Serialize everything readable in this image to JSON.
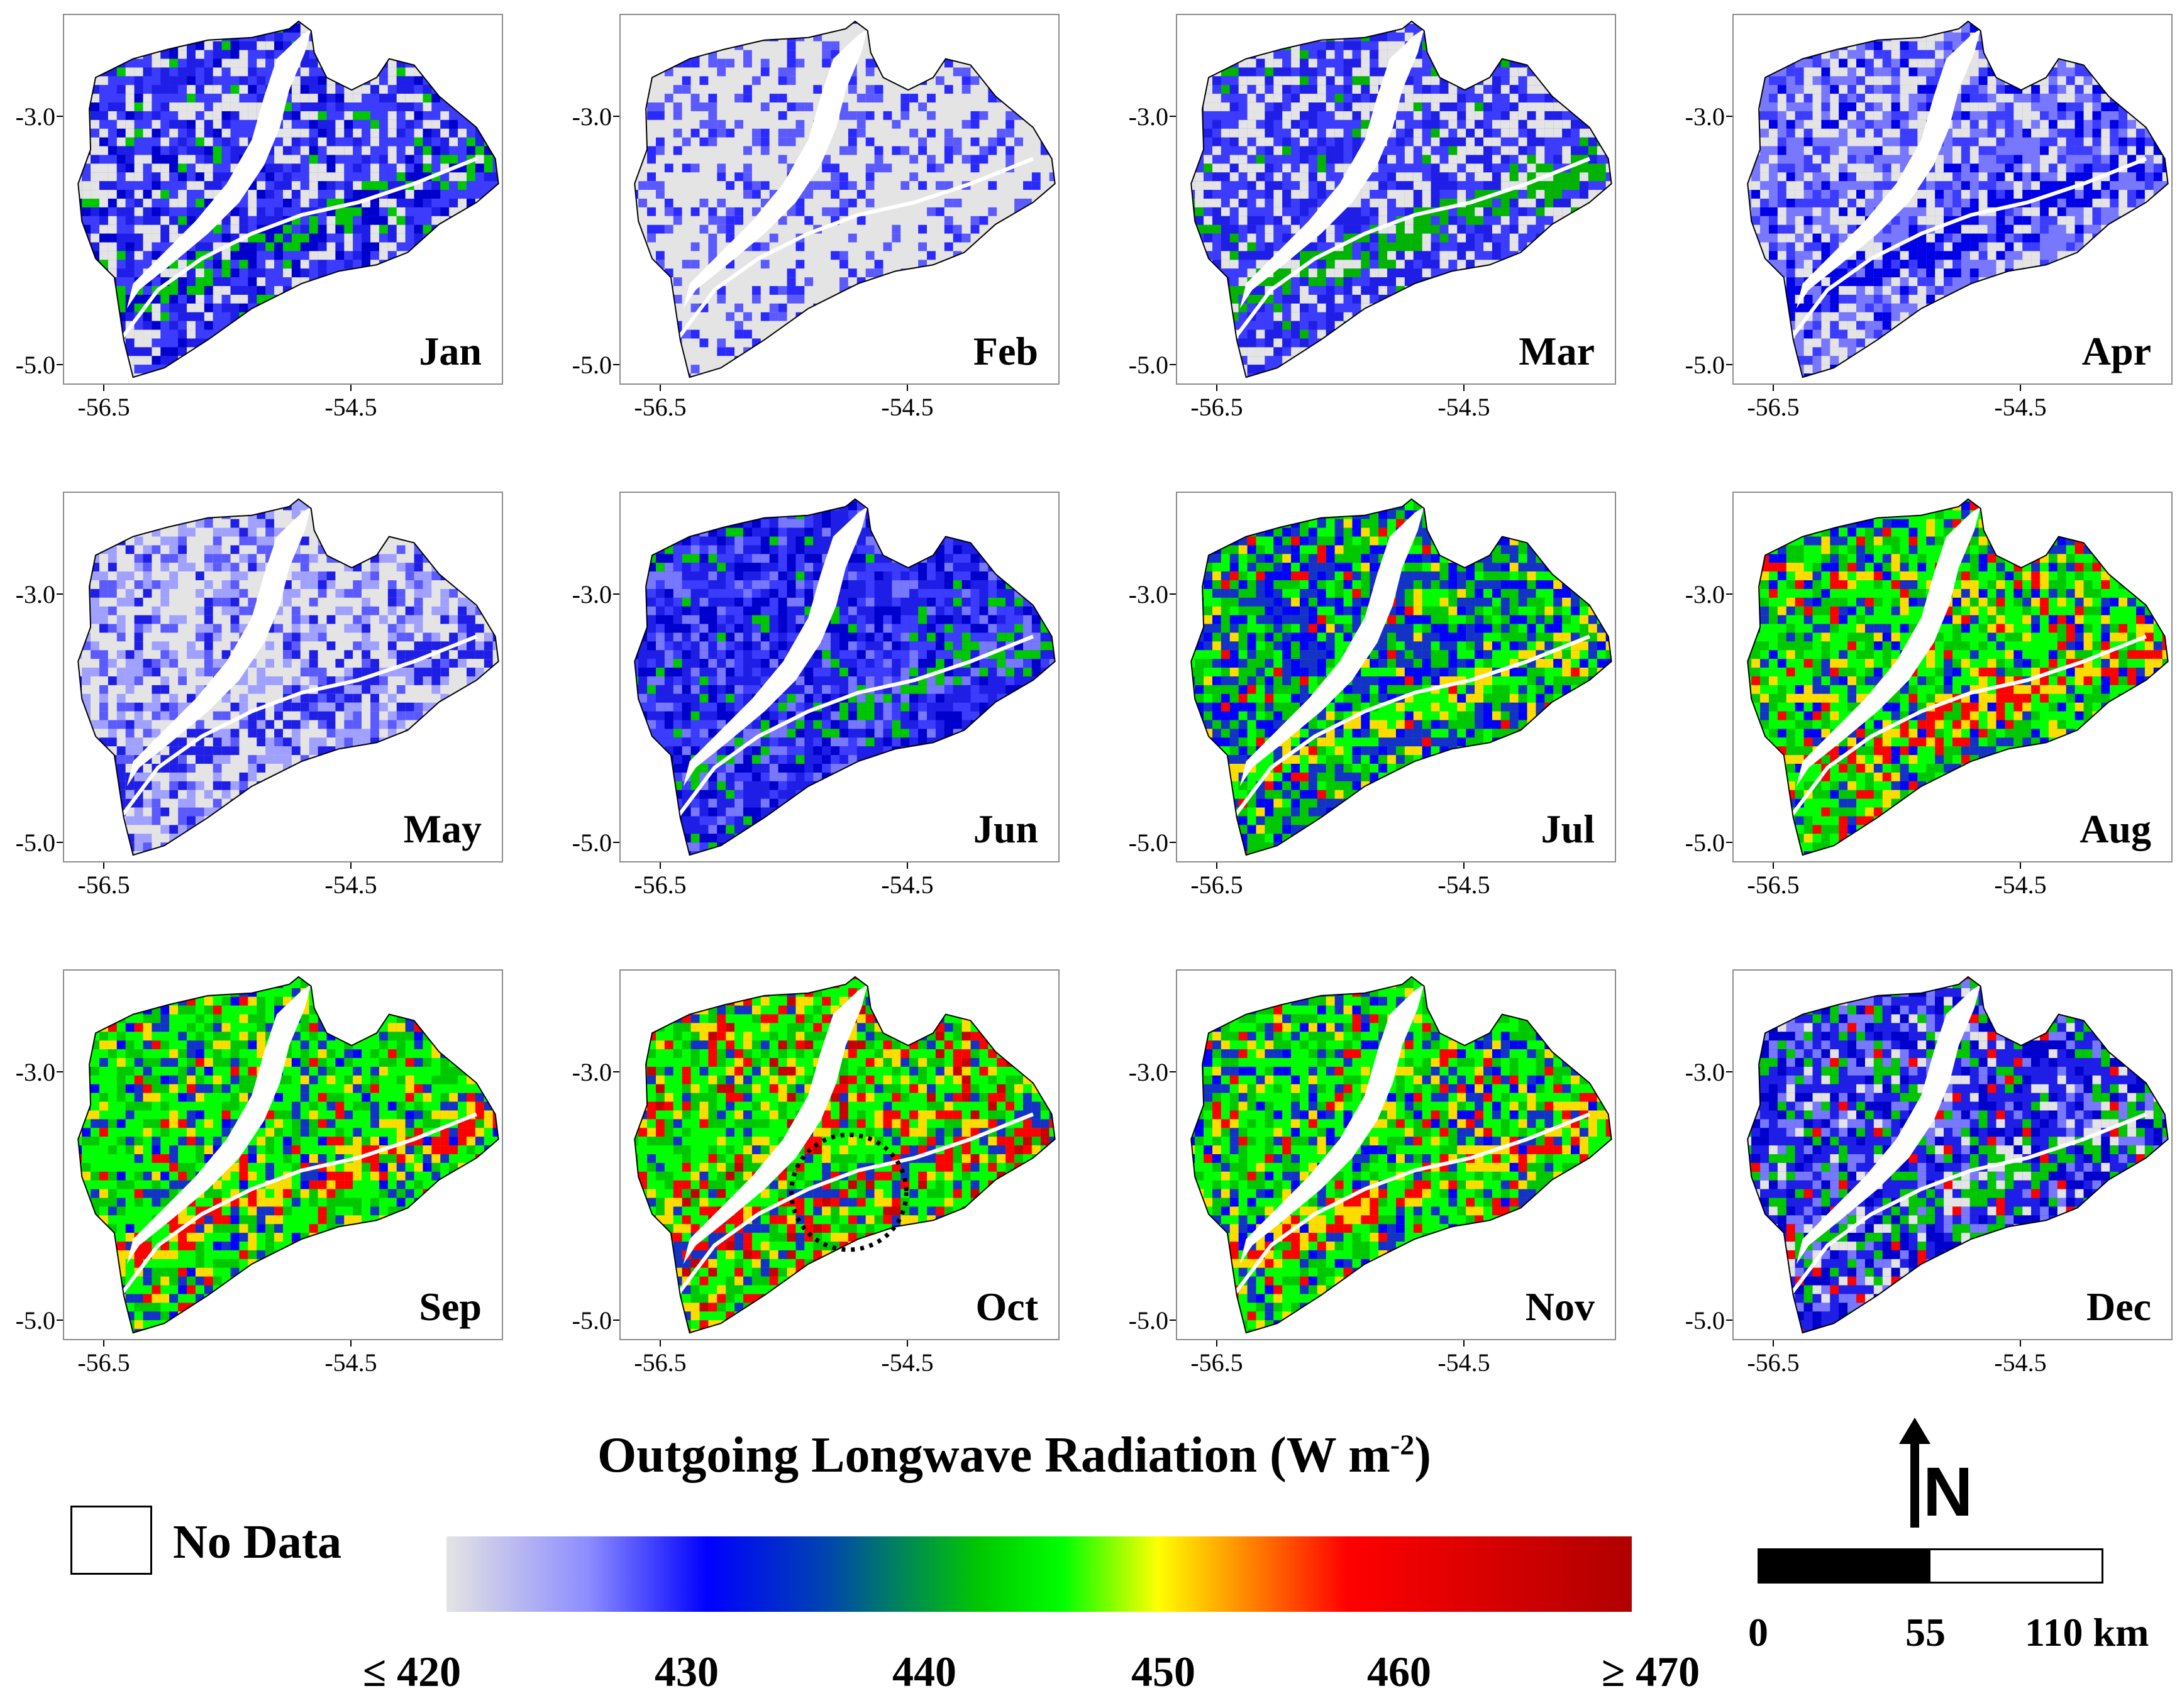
{
  "panels": [
    {
      "month": "Jan",
      "ticks": {
        "y_top": "-3.0",
        "y_bottom": "-5.0",
        "x_left": "-56.5",
        "x_right": "-54.5"
      },
      "palette": [
        "#3c3cff",
        "#1e1ee6",
        "#e4e4e4",
        "#0000cd",
        "#00c800"
      ],
      "weights": [
        30,
        25,
        30,
        10,
        5
      ]
    },
    {
      "month": "Feb",
      "ticks": {
        "y_top": "-3.0",
        "y_bottom": "-5.0",
        "x_left": "-56.5",
        "x_right": "-54.5"
      },
      "palette": [
        "#e4e4e4",
        "#5a5aff",
        "#2a2aff",
        "#e4e4e4"
      ],
      "weights": [
        55,
        20,
        15,
        10
      ]
    },
    {
      "month": "Mar",
      "ticks": {
        "y_top": "-3.0",
        "y_bottom": "-5.0",
        "x_left": "-56.5",
        "x_right": "-54.5"
      },
      "palette": [
        "#3c3cff",
        "#e4e4e4",
        "#1e1ee6",
        "#00b400"
      ],
      "weights": [
        35,
        35,
        25,
        5
      ]
    },
    {
      "month": "Apr",
      "ticks": {
        "y_top": "-3.0",
        "y_bottom": "-5.0",
        "x_left": "-56.5",
        "x_right": "-54.5"
      },
      "palette": [
        "#7878ff",
        "#3c3cff",
        "#e4e4e4",
        "#0000e6"
      ],
      "weights": [
        35,
        25,
        30,
        10
      ]
    },
    {
      "month": "May",
      "ticks": {
        "y_top": "-3.0",
        "y_bottom": "-5.0",
        "x_left": "-56.5",
        "x_right": "-54.5"
      },
      "palette": [
        "#e4e4e4",
        "#a0a0ff",
        "#5a5aff",
        "#1e1ee6"
      ],
      "weights": [
        45,
        30,
        15,
        10
      ]
    },
    {
      "month": "Jun",
      "ticks": {
        "y_top": "-3.0",
        "y_bottom": "-5.0",
        "x_left": "-56.5",
        "x_right": "-54.5"
      },
      "palette": [
        "#1e1ee6",
        "#3c3cff",
        "#0000cd",
        "#7878ff",
        "#00c800"
      ],
      "weights": [
        35,
        25,
        20,
        15,
        5
      ]
    },
    {
      "month": "Jul",
      "ticks": {
        "y_top": "-3.0",
        "y_bottom": "-5.0",
        "x_left": "-56.5",
        "x_right": "-54.5"
      },
      "palette": [
        "#00c800",
        "#1432c8",
        "#0000ff",
        "#00ff00",
        "#ffdc00",
        "#ff0000"
      ],
      "weights": [
        30,
        25,
        20,
        15,
        6,
        4
      ]
    },
    {
      "month": "Aug",
      "ticks": {
        "y_top": "-3.0",
        "y_bottom": "-5.0",
        "x_left": "-56.5",
        "x_right": "-54.5"
      },
      "palette": [
        "#00ff00",
        "#00c800",
        "#1432c8",
        "#ffdc00",
        "#ff0000",
        "#0000ff"
      ],
      "weights": [
        35,
        25,
        12,
        10,
        10,
        8
      ]
    },
    {
      "month": "Sep",
      "ticks": {
        "y_top": "-3.0",
        "y_bottom": "-5.0",
        "x_left": "-56.5",
        "x_right": "-54.5"
      },
      "palette": [
        "#00ff00",
        "#00c800",
        "#1432c8",
        "#ffdc00",
        "#ff0000",
        "#0000ff"
      ],
      "weights": [
        40,
        22,
        14,
        10,
        8,
        6
      ]
    },
    {
      "month": "Oct",
      "ticks": {
        "y_top": "-3.0",
        "y_bottom": "-5.0",
        "x_left": "-56.5",
        "x_right": "-54.5"
      },
      "palette": [
        "#00ff00",
        "#00c800",
        "#ffdc00",
        "#ff0000",
        "#1432c8",
        "#c80000"
      ],
      "weights": [
        38,
        20,
        14,
        14,
        8,
        6
      ]
    },
    {
      "month": "Nov",
      "ticks": {
        "y_top": "-3.0",
        "y_bottom": "-5.0",
        "x_left": "-56.5",
        "x_right": "-54.5"
      },
      "palette": [
        "#00ff00",
        "#00c800",
        "#1432c8",
        "#ffdc00",
        "#ff0000",
        "#0000ff"
      ],
      "weights": [
        38,
        22,
        14,
        10,
        8,
        8
      ]
    },
    {
      "month": "Dec",
      "ticks": {
        "y_top": "-3.0",
        "y_bottom": "-5.0",
        "x_left": "-56.5",
        "x_right": "-54.5"
      },
      "palette": [
        "#1e1ee6",
        "#0000cd",
        "#7878ff",
        "#00c800",
        "#e4e4e4",
        "#ff0000"
      ],
      "weights": [
        35,
        20,
        18,
        15,
        8,
        4
      ]
    }
  ],
  "legend": {
    "title_prefix": "Outgoing Longwave Radiation (W m",
    "title_superscript": "-2",
    "title_suffix": ")",
    "tick_labels": [
      "≤ 420",
      "430",
      "440",
      "450",
      "460",
      "≥ 470"
    ],
    "colors": [
      "#e4e4e4",
      "#0000ff",
      "#00c800",
      "#00ff00",
      "#ffff00",
      "#ff0000",
      "#b00000"
    ],
    "no_data_label": "No Data"
  },
  "north_arrow": {
    "label": "N"
  },
  "scale_bar": {
    "labels": [
      "0",
      "55",
      "110 km"
    ]
  },
  "annotation": {
    "panel": "Oct",
    "shape": "dotted circle"
  }
}
